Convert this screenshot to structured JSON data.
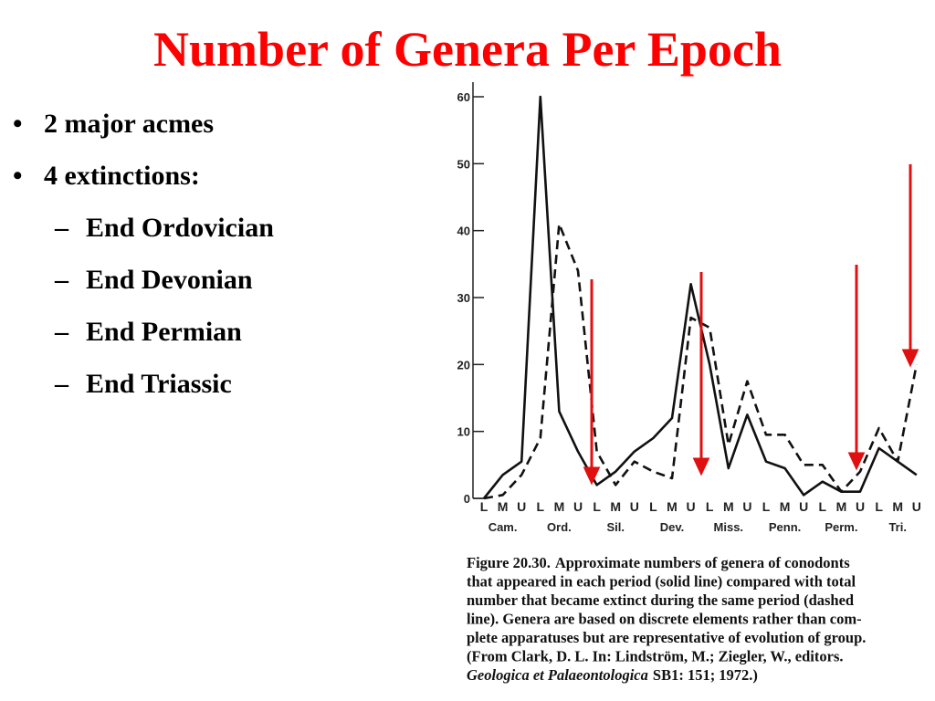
{
  "title": "Number of Genera Per Epoch",
  "bullets": [
    {
      "text": "2 major acmes",
      "sub": []
    },
    {
      "text": "4 extinctions:",
      "sub": [
        "End Ordovician",
        "End Devonian",
        "End Permian",
        "End Triassic"
      ]
    }
  ],
  "chart_data": {
    "type": "line",
    "categories": [
      "L",
      "M",
      "U",
      "L",
      "M",
      "U",
      "L",
      "M",
      "U",
      "L",
      "M",
      "U",
      "L",
      "M",
      "U",
      "L",
      "M",
      "U",
      "L",
      "M",
      "U",
      "L",
      "M",
      "U"
    ],
    "groups": [
      "Cam.",
      "Ord.",
      "Sil.",
      "Dev.",
      "Miss.",
      "Penn.",
      "Perm.",
      "Tri."
    ],
    "series": [
      {
        "color": "#111111",
        "dash": false,
        "values": [
          0,
          3.5,
          5.5,
          60,
          13,
          7,
          2,
          4,
          7,
          9,
          12,
          32,
          20,
          4.5,
          12.5,
          5.5,
          4.5,
          0.5,
          2.5,
          1,
          1,
          7.5,
          5.5,
          3.5
        ]
      },
      {
        "color": "#111111",
        "dash": true,
        "values": [
          0,
          0.5,
          3.5,
          9,
          41,
          34,
          7,
          2,
          5.5,
          4,
          3,
          27,
          25.5,
          8,
          17.5,
          9.5,
          9.5,
          5,
          5,
          1,
          4,
          10.5,
          5.5,
          20
        ]
      }
    ],
    "ylim": [
      0,
      60
    ],
    "yticks": [
      0,
      10,
      20,
      30,
      40,
      50,
      60
    ],
    "caption": {
      "label": "Figure 20.30.",
      "lines": [
        "Approximate numbers of genera of conodonts",
        "that appeared in each period (solid line) compared with total",
        "number that became extinct during the same period (dashed",
        "line). Genera are based on discrete elements rather than com-",
        "plete apparatuses but are representative of evolution of group.",
        "(From Clark, D. L. In: Lindström, M.; Ziegler, W., editors."
      ],
      "source_italic": "Geologica et Palaeontologica",
      "source_rest": "SB1: 151; 1972.)"
    }
  }
}
